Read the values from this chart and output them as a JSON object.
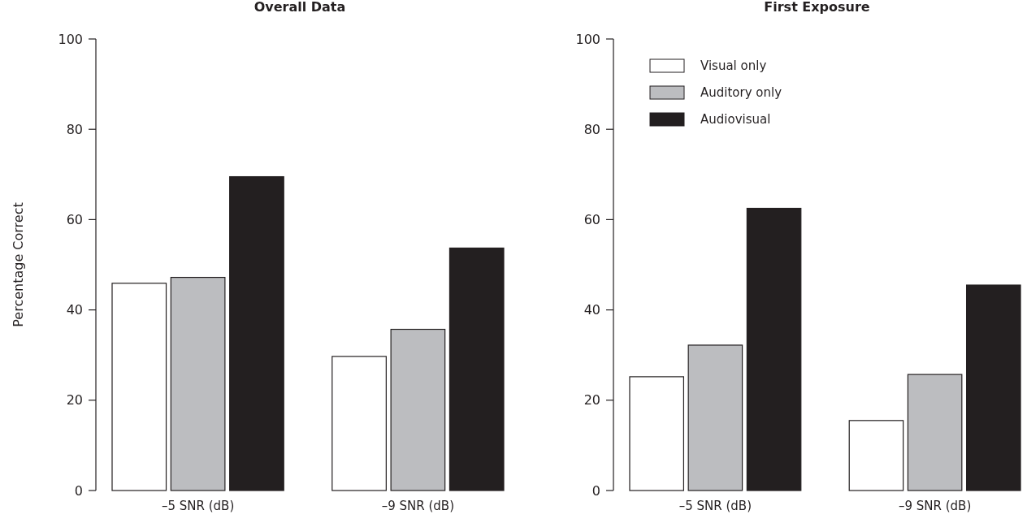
{
  "chart_data": [
    {
      "type": "bar",
      "title": "Overall Data",
      "ylabel": "Percentage Correct",
      "categories": [
        "–5 SNR (dB)",
        "–9 SNR (dB)"
      ],
      "ylim": [
        0,
        100
      ],
      "yticks": [
        0,
        20,
        40,
        60,
        80,
        100
      ],
      "grid": false,
      "legend": false,
      "series": [
        {
          "color": "#ffffff",
          "values": [
            45.9,
            29.7
          ]
        },
        {
          "color": "#bcbdc0",
          "values": [
            47.2,
            35.7
          ]
        },
        {
          "color": "#231f20",
          "values": [
            69.5,
            53.7
          ]
        }
      ]
    },
    {
      "type": "bar",
      "title": "First Exposure",
      "categories": [
        "–5 SNR (dB)",
        "–9 SNR (dB)"
      ],
      "ylim": [
        0,
        100
      ],
      "yticks": [
        0,
        20,
        40,
        60,
        80,
        100
      ],
      "grid": false,
      "legend": "top left",
      "series": [
        {
          "name": "Visual only",
          "color": "#ffffff",
          "values": [
            25.2,
            15.5
          ]
        },
        {
          "name": "Auditory only",
          "color": "#bcbdc0",
          "values": [
            32.2,
            25.7
          ]
        },
        {
          "name": "Audiovisual",
          "color": "#231f20",
          "values": [
            62.5,
            45.5
          ]
        }
      ]
    }
  ]
}
